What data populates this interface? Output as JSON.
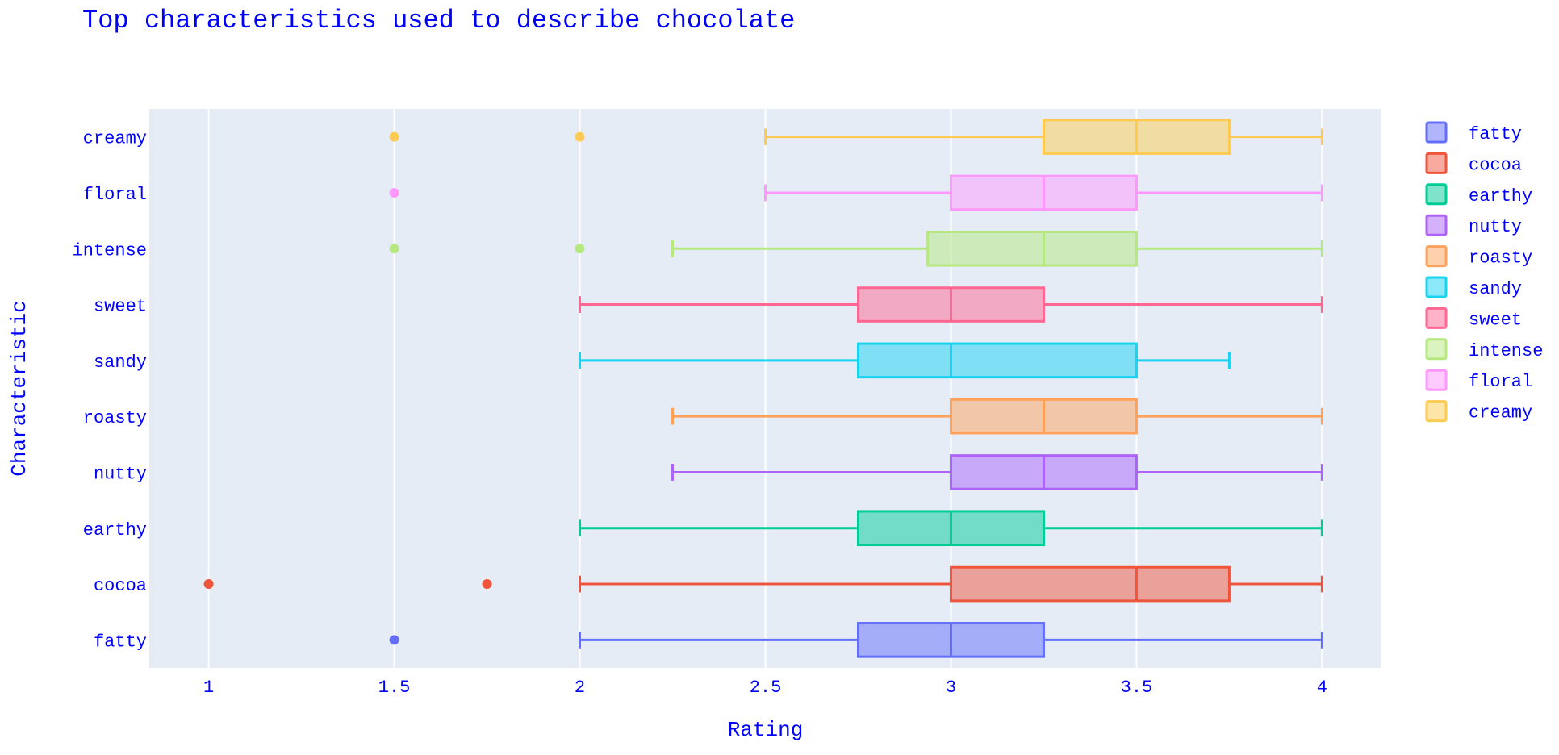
{
  "chart_data": {
    "type": "box",
    "orientation": "horizontal",
    "title": "Top characteristics used to describe chocolate",
    "xlabel": "Rating",
    "ylabel": "Characteristic",
    "xlim": [
      0.84,
      4.16
    ],
    "xticks": [
      1,
      1.5,
      2,
      2.5,
      3,
      3.5,
      4
    ],
    "xtick_labels": [
      "1",
      "1.5",
      "2",
      "2.5",
      "3",
      "3.5",
      "4"
    ],
    "grid": true,
    "legend_position": "right",
    "series": [
      {
        "name": "fatty",
        "color": "#636efa",
        "min": 2,
        "q1": 2.75,
        "median": 3,
        "q3": 3.25,
        "max": 4,
        "outliers": [
          1.5
        ]
      },
      {
        "name": "cocoa",
        "color": "#ef553b",
        "min": 2,
        "q1": 3,
        "median": 3.5,
        "q3": 3.75,
        "max": 4,
        "outliers": [
          1,
          1.75
        ]
      },
      {
        "name": "earthy",
        "color": "#00cc96",
        "min": 2,
        "q1": 2.75,
        "median": 3,
        "q3": 3.25,
        "max": 4,
        "outliers": []
      },
      {
        "name": "nutty",
        "color": "#ab63fa",
        "min": 2.25,
        "q1": 3,
        "median": 3.25,
        "q3": 3.5,
        "max": 4,
        "outliers": []
      },
      {
        "name": "roasty",
        "color": "#ffa15a",
        "min": 2.25,
        "q1": 3,
        "median": 3.25,
        "q3": 3.5,
        "max": 4,
        "outliers": []
      },
      {
        "name": "sandy",
        "color": "#19d3f3",
        "min": 2,
        "q1": 2.75,
        "median": 3,
        "q3": 3.5,
        "max": 3.75,
        "outliers": []
      },
      {
        "name": "sweet",
        "color": "#ff6692",
        "min": 2,
        "q1": 2.75,
        "median": 3,
        "q3": 3.25,
        "max": 4,
        "outliers": []
      },
      {
        "name": "intense",
        "color": "#b6e880",
        "min": 2.25,
        "q1": 2.9375,
        "median": 3.25,
        "q3": 3.5,
        "max": 4,
        "outliers": [
          1.5,
          2
        ]
      },
      {
        "name": "floral",
        "color": "#ff97ff",
        "min": 2.5,
        "q1": 3,
        "median": 3.25,
        "q3": 3.5,
        "max": 4,
        "outliers": [
          1.5
        ]
      },
      {
        "name": "creamy",
        "color": "#fecb52",
        "min": 2.5,
        "q1": 3.25,
        "median": 3.5,
        "q3": 3.75,
        "max": 4,
        "outliers": [
          1.5,
          2
        ]
      }
    ]
  }
}
